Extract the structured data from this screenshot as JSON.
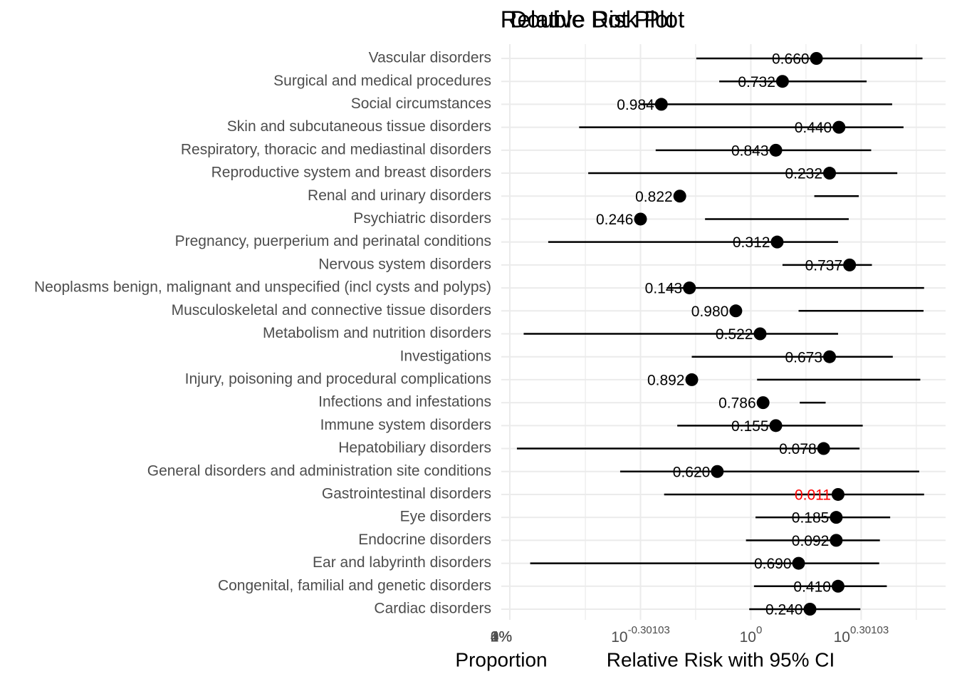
{
  "chart_data": {
    "type": "forest",
    "titles": [
      "Relative Risk Plot",
      "Double Dot Plot"
    ],
    "categories": [
      "Vascular disorders",
      "Surgical and medical procedures",
      "Social circumstances",
      "Skin and subcutaneous tissue disorders",
      "Respiratory, thoracic and mediastinal disorders",
      "Reproductive system and breast disorders",
      "Renal and urinary disorders",
      "Psychiatric disorders",
      "Pregnancy, puerperium and perinatal conditions",
      "Nervous system disorders",
      "Neoplasms benign, malignant and unspecified (incl cysts and polyps)",
      "Musculoskeletal and connective tissue disorders",
      "Metabolism and nutrition disorders",
      "Investigations",
      "Injury, poisoning and procedural complications",
      "Infections and infestations",
      "Immune system disorders",
      "Hepatobiliary disorders",
      "General disorders and administration site conditions",
      "Gastrointestinal disorders",
      "Eye disorders",
      "Endocrine disorders",
      "Ear and labyrinth disorders",
      "Congenital, familial and genetic disorders",
      "Cardiac disorders"
    ],
    "values": [
      1.51,
      1.22,
      0.57,
      1.74,
      1.17,
      1.64,
      0.64,
      0.5,
      1.18,
      1.86,
      0.68,
      0.91,
      1.06,
      1.64,
      0.69,
      1.08,
      1.17,
      1.58,
      0.81,
      1.73,
      1.71,
      1.71,
      1.35,
      1.73,
      1.45
    ],
    "lower": [
      0.71,
      0.82,
      0.5,
      0.34,
      0.55,
      0.36,
      1.49,
      0.75,
      0.28,
      1.22,
      0.59,
      1.35,
      0.24,
      0.69,
      1.04,
      1.36,
      0.63,
      0.23,
      0.44,
      0.58,
      1.03,
      0.97,
      0.25,
      1.02,
      0.99
    ],
    "upper": [
      2.94,
      2.07,
      2.43,
      2.61,
      2.13,
      2.51,
      1.97,
      1.85,
      1.73,
      2.14,
      2.97,
      2.96,
      1.73,
      2.44,
      2.9,
      1.6,
      2.02,
      1.98,
      2.88,
      2.97,
      2.4,
      2.25,
      2.24,
      2.35,
      1.99
    ],
    "p_values": [
      0.66,
      0.732,
      0.984,
      0.44,
      0.843,
      0.232,
      0.822,
      0.246,
      0.312,
      0.737,
      0.143,
      0.98,
      0.522,
      0.673,
      0.892,
      0.786,
      0.155,
      0.078,
      0.62,
      0.011,
      0.185,
      0.092,
      0.69,
      0.41,
      0.24
    ],
    "p_value_labels": [
      "0.660",
      "0.732",
      "0.984",
      "0.440",
      "0.843",
      "0.232",
      "0.822",
      "0.246",
      "0.312",
      "0.737",
      "0.143",
      "0.980",
      "0.522",
      "0.673",
      "0.892",
      "0.786",
      "0.155",
      "0.078",
      "0.620",
      "0.011",
      "0.185",
      "0.092",
      "0.690",
      "0.410",
      "0.240"
    ],
    "p_value_colors": [
      "#000000",
      "#000000",
      "#000000",
      "#000000",
      "#000000",
      "#000000",
      "#000000",
      "#000000",
      "#000000",
      "#000000",
      "#000000",
      "#000000",
      "#000000",
      "#000000",
      "#000000",
      "#000000",
      "#000000",
      "#000000",
      "#000000",
      "#ff0000",
      "#000000",
      "#000000",
      "#000000",
      "#000000",
      "#000000"
    ],
    "color": "#000000",
    "xlabel": "Relative Risk with 95% CI",
    "xscale": "log",
    "xlim": [
      0.22,
      3.4
    ],
    "xticks": [
      {
        "value": 0.5,
        "label": "10",
        "exponent": "-0.30103"
      },
      {
        "value": 1,
        "label": "10",
        "exponent": "0"
      },
      {
        "value": 2,
        "label": "10",
        "exponent": "0.30103"
      }
    ],
    "grid": true,
    "proportion_xlabel": "Proportion",
    "proportion_xlim": [
      0,
      4
    ],
    "proportion_xticks": [
      {
        "value": 0,
        "label": "0%"
      },
      {
        "value": 1,
        "label": "1%"
      },
      {
        "value": 2,
        "label": "2%"
      },
      {
        "value": 3,
        "label": "3%"
      },
      {
        "value": 4,
        "label": "4%"
      }
    ]
  }
}
